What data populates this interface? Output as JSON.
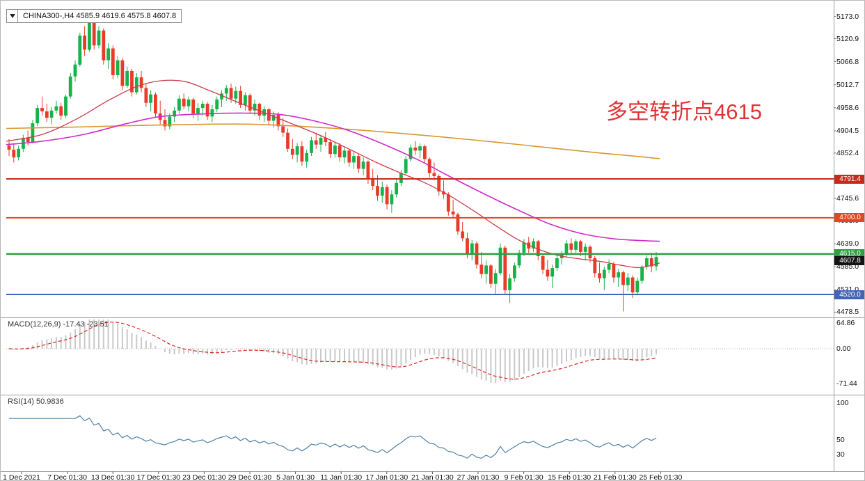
{
  "header": {
    "symbol_period": "CHINA300-,H4",
    "ohlc": "4585.9 4619.6 4575.8 4607.8"
  },
  "annotation": {
    "text": "多空转折点4615",
    "color": "#e03331"
  },
  "price_axis": {
    "ticks": [
      "5173.0",
      "5120.9",
      "5066.8",
      "5012.7",
      "4958.6",
      "4904.5",
      "4852.4",
      "4745.6",
      "4693.0",
      "4639.0",
      "4585.0",
      "4531.0",
      "4478.5"
    ]
  },
  "time_axis": {
    "labels": [
      "1 Dec 2021",
      "7 Dec 01:30",
      "13 Dec 01:30",
      "17 Dec 01:30",
      "23 Dec 01:30",
      "29 Dec 01:30",
      "5 Jan 01:30",
      "11 Jan 01:30",
      "17 Jan 01:30",
      "21 Jan 01:30",
      "27 Jan 01:30",
      "9 Feb 01:30",
      "15 Feb 01:30",
      "21 Feb 01:30",
      "25 Feb 01:30"
    ]
  },
  "indicator_panels": {
    "macd": {
      "label": "MACD(12,26,9) -17.43 -23.51",
      "params": [
        12,
        26,
        9
      ],
      "values_text": "-17.43 -23.51",
      "axis_ticks": [
        64.86,
        0,
        -71.44
      ]
    },
    "rsi": {
      "label": "RSI(14) 50.9836",
      "period": 14,
      "value_text": "50.9836",
      "axis_ticks": [
        100,
        50,
        30
      ]
    }
  },
  "chart_data": {
    "type": "candlestick",
    "symbol": "CHINA300-",
    "timeframe": "H4",
    "price_range": [
      4478.5,
      5173.0
    ],
    "candles": [
      [
        4870,
        4885,
        4845,
        4860
      ],
      [
        4860,
        4875,
        4830,
        4842
      ],
      [
        4842,
        4870,
        4835,
        4862
      ],
      [
        4862,
        4895,
        4855,
        4888
      ],
      [
        4888,
        4905,
        4870,
        4878
      ],
      [
        4878,
        4930,
        4875,
        4922
      ],
      [
        4922,
        4965,
        4915,
        4958
      ],
      [
        4958,
        4985,
        4940,
        4950
      ],
      [
        4950,
        4968,
        4925,
        4935
      ],
      [
        4935,
        4960,
        4920,
        4952
      ],
      [
        4952,
        4975,
        4945,
        4962
      ],
      [
        4962,
        4970,
        4930,
        4940
      ],
      [
        4940,
        4990,
        4935,
        4985
      ],
      [
        4985,
        5040,
        4980,
        5032
      ],
      [
        5032,
        5070,
        5020,
        5060
      ],
      [
        5060,
        5135,
        5055,
        5128
      ],
      [
        5128,
        5150,
        5080,
        5095
      ],
      [
        5095,
        5173,
        5090,
        5160
      ],
      [
        5160,
        5168,
        5095,
        5105
      ],
      [
        5105,
        5150,
        5098,
        5140
      ],
      [
        5140,
        5145,
        5060,
        5070
      ],
      [
        5070,
        5110,
        5050,
        5098
      ],
      [
        5098,
        5105,
        5025,
        5035
      ],
      [
        5035,
        5080,
        5028,
        5070
      ],
      [
        5070,
        5075,
        5000,
        5010
      ],
      [
        5010,
        5055,
        5005,
        5045
      ],
      [
        5045,
        5050,
        4985,
        4995
      ],
      [
        4995,
        5040,
        4990,
        5030
      ],
      [
        5030,
        5045,
        4995,
        5005
      ],
      [
        5005,
        5015,
        4960,
        4970
      ],
      [
        4970,
        5000,
        4950,
        4990
      ],
      [
        4990,
        4995,
        4935,
        4945
      ],
      [
        4945,
        4975,
        4920,
        4930
      ],
      [
        4930,
        4955,
        4905,
        4915
      ],
      [
        4915,
        4945,
        4908,
        4938
      ],
      [
        4938,
        4960,
        4925,
        4952
      ],
      [
        4952,
        4988,
        4945,
        4980
      ],
      [
        4980,
        4992,
        4955,
        4962
      ],
      [
        4962,
        4985,
        4950,
        4978
      ],
      [
        4978,
        4982,
        4935,
        4945
      ],
      [
        4945,
        4970,
        4928,
        4958
      ],
      [
        4958,
        4975,
        4940,
        4968
      ],
      [
        4968,
        4972,
        4930,
        4938
      ],
      [
        4938,
        4965,
        4925,
        4955
      ],
      [
        4955,
        4985,
        4948,
        4978
      ],
      [
        4978,
        5000,
        4960,
        4992
      ],
      [
        4992,
        5012,
        4975,
        5005
      ],
      [
        5005,
        5015,
        4970,
        4980
      ],
      [
        4980,
        5008,
        4968,
        4998
      ],
      [
        4998,
        5010,
        4958,
        4965
      ],
      [
        4965,
        4995,
        4952,
        4988
      ],
      [
        4988,
        4992,
        4945,
        4952
      ],
      [
        4952,
        4978,
        4940,
        4968
      ],
      [
        4968,
        4970,
        4930,
        4940
      ],
      [
        4940,
        4962,
        4925,
        4955
      ],
      [
        4955,
        4958,
        4918,
        4928
      ],
      [
        4928,
        4950,
        4912,
        4942
      ],
      [
        4942,
        4948,
        4905,
        4915
      ],
      [
        4915,
        4935,
        4890,
        4900
      ],
      [
        4900,
        4910,
        4855,
        4862
      ],
      [
        4862,
        4885,
        4838,
        4848
      ],
      [
        4848,
        4875,
        4830,
        4868
      ],
      [
        4868,
        4880,
        4822,
        4832
      ],
      [
        4832,
        4860,
        4818,
        4852
      ],
      [
        4852,
        4890,
        4845,
        4882
      ],
      [
        4882,
        4900,
        4862,
        4872
      ],
      [
        4872,
        4895,
        4855,
        4888
      ],
      [
        4888,
        4902,
        4868,
        4878
      ],
      [
        4878,
        4885,
        4840,
        4850
      ],
      [
        4850,
        4878,
        4842,
        4870
      ],
      [
        4870,
        4875,
        4832,
        4842
      ],
      [
        4842,
        4868,
        4828,
        4858
      ],
      [
        4858,
        4862,
        4820,
        4830
      ],
      [
        4830,
        4855,
        4815,
        4845
      ],
      [
        4845,
        4850,
        4805,
        4815
      ],
      [
        4815,
        4842,
        4800,
        4832
      ],
      [
        4832,
        4835,
        4780,
        4790
      ],
      [
        4790,
        4815,
        4765,
        4775
      ],
      [
        4775,
        4800,
        4740,
        4752
      ],
      [
        4752,
        4785,
        4735,
        4772
      ],
      [
        4772,
        4778,
        4720,
        4732
      ],
      [
        4732,
        4765,
        4712,
        4755
      ],
      [
        4755,
        4790,
        4748,
        4782
      ],
      [
        4782,
        4812,
        4775,
        4805
      ],
      [
        4805,
        4845,
        4800,
        4838
      ],
      [
        4838,
        4872,
        4832,
        4865
      ],
      [
        4865,
        4880,
        4848,
        4858
      ],
      [
        4858,
        4875,
        4840,
        4868
      ],
      [
        4868,
        4872,
        4828,
        4838
      ],
      [
        4838,
        4842,
        4795,
        4805
      ],
      [
        4805,
        4830,
        4788,
        4798
      ],
      [
        4798,
        4802,
        4752,
        4762
      ],
      [
        4762,
        4788,
        4745,
        4755
      ],
      [
        4755,
        4760,
        4705,
        4715
      ],
      [
        4715,
        4742,
        4698,
        4708
      ],
      [
        4708,
        4712,
        4660,
        4668
      ],
      [
        4668,
        4690,
        4645,
        4652
      ],
      [
        4652,
        4665,
        4605,
        4615
      ],
      [
        4615,
        4648,
        4600,
        4640
      ],
      [
        4640,
        4645,
        4580,
        4590
      ],
      [
        4590,
        4620,
        4558,
        4568
      ],
      [
        4568,
        4600,
        4545,
        4588
      ],
      [
        4588,
        4592,
        4535,
        4545
      ],
      [
        4545,
        4580,
        4522,
        4570
      ],
      [
        4570,
        4640,
        4565,
        4630
      ],
      [
        4630,
        4635,
        4520,
        4530
      ],
      [
        4530,
        4568,
        4500,
        4558
      ],
      [
        4558,
        4595,
        4550,
        4588
      ],
      [
        4588,
        4625,
        4582,
        4618
      ],
      [
        4618,
        4650,
        4610,
        4642
      ],
      [
        4642,
        4655,
        4618,
        4628
      ],
      [
        4628,
        4652,
        4620,
        4645
      ],
      [
        4645,
        4648,
        4600,
        4610
      ],
      [
        4610,
        4615,
        4568,
        4578
      ],
      [
        4578,
        4602,
        4552,
        4562
      ],
      [
        4562,
        4590,
        4535,
        4582
      ],
      [
        4582,
        4612,
        4575,
        4605
      ],
      [
        4605,
        4622,
        4590,
        4615
      ],
      [
        4615,
        4648,
        4608,
        4640
      ],
      [
        4640,
        4652,
        4615,
        4625
      ],
      [
        4625,
        4650,
        4618,
        4645
      ],
      [
        4645,
        4648,
        4610,
        4620
      ],
      [
        4620,
        4640,
        4600,
        4632
      ],
      [
        4632,
        4636,
        4595,
        4605
      ],
      [
        4605,
        4610,
        4560,
        4570
      ],
      [
        4570,
        4595,
        4548,
        4558
      ],
      [
        4558,
        4585,
        4530,
        4578
      ],
      [
        4578,
        4602,
        4570,
        4592
      ],
      [
        4592,
        4596,
        4548,
        4560
      ],
      [
        4560,
        4580,
        4538,
        4572
      ],
      [
        4572,
        4576,
        4480,
        4542
      ],
      [
        4542,
        4570,
        4528,
        4560
      ],
      [
        4560,
        4565,
        4512,
        4525
      ],
      [
        4525,
        4560,
        4518,
        4552
      ],
      [
        4552,
        4590,
        4545,
        4585
      ],
      [
        4585,
        4612,
        4578,
        4605
      ],
      [
        4605,
        4618,
        4572,
        4586
      ],
      [
        4586,
        4620,
        4576,
        4608
      ]
    ],
    "ma_lines": [
      {
        "name": "ma-line-gold",
        "color": "#d9962e",
        "width": 1.6,
        "points": [
          [
            8,
            4910
          ],
          [
            100,
            4913
          ],
          [
            200,
            4917
          ],
          [
            300,
            4920
          ],
          [
            360,
            4920
          ],
          [
            430,
            4915
          ],
          [
            500,
            4908
          ],
          [
            570,
            4899
          ],
          [
            640,
            4889
          ],
          [
            710,
            4878
          ],
          [
            780,
            4866
          ],
          [
            850,
            4854
          ],
          [
            910,
            4845
          ],
          [
            947,
            4839
          ]
        ]
      },
      {
        "name": "ma-line-magenta",
        "color": "#cf2bc8",
        "width": 1.6,
        "points": [
          [
            8,
            4872
          ],
          [
            60,
            4880
          ],
          [
            120,
            4896
          ],
          [
            180,
            4921
          ],
          [
            230,
            4938
          ],
          [
            290,
            4944
          ],
          [
            350,
            4946
          ],
          [
            400,
            4943
          ],
          [
            450,
            4928
          ],
          [
            500,
            4905
          ],
          [
            550,
            4873
          ],
          [
            600,
            4836
          ],
          [
            650,
            4793
          ],
          [
            700,
            4752
          ],
          [
            745,
            4717
          ],
          [
            790,
            4685
          ],
          [
            835,
            4663
          ],
          [
            880,
            4651
          ],
          [
            915,
            4647
          ],
          [
            947,
            4645
          ]
        ]
      },
      {
        "name": "ma-line-red",
        "color": "#cf3b4a",
        "width": 1.3,
        "points": [
          [
            8,
            4880
          ],
          [
            60,
            4896
          ],
          [
            110,
            4933
          ],
          [
            155,
            4976
          ],
          [
            195,
            5008
          ],
          [
            230,
            5022
          ],
          [
            265,
            5020
          ],
          [
            300,
            4999
          ],
          [
            340,
            4972
          ],
          [
            380,
            4946
          ],
          [
            420,
            4920
          ],
          [
            460,
            4893
          ],
          [
            500,
            4862
          ],
          [
            540,
            4830
          ],
          [
            575,
            4805
          ],
          [
            610,
            4782
          ],
          [
            645,
            4752
          ],
          [
            680,
            4716
          ],
          [
            710,
            4683
          ],
          [
            740,
            4652
          ],
          [
            770,
            4628
          ],
          [
            800,
            4612
          ],
          [
            830,
            4604
          ],
          [
            860,
            4598
          ],
          [
            890,
            4589
          ],
          [
            915,
            4583
          ],
          [
            932,
            4587
          ],
          [
            947,
            4594
          ]
        ]
      }
    ],
    "hlines": [
      {
        "value": 4791.4,
        "label": "4791.4",
        "color": "#c32b1d",
        "width": 2
      },
      {
        "value": 4700.0,
        "label": "4700.0",
        "color": "#e2481d",
        "width": 2
      },
      {
        "value": 4615.0,
        "label": "4615.0",
        "color": "#2f9e44",
        "width": 2.5
      },
      {
        "value": 4520.0,
        "label": "4520.0",
        "color": "#4263b8",
        "width": 2
      }
    ],
    "last_price": {
      "value": 4607.8,
      "label": "4607.8",
      "bg": "#141414"
    },
    "colors": {
      "up": "#17b24a",
      "down": "#e83b28",
      "macd_hist": "#c9c9c9",
      "macd_signal": "#d42a20",
      "rsi": "#4f81a8",
      "axis_line": "#9a9a9a"
    }
  }
}
